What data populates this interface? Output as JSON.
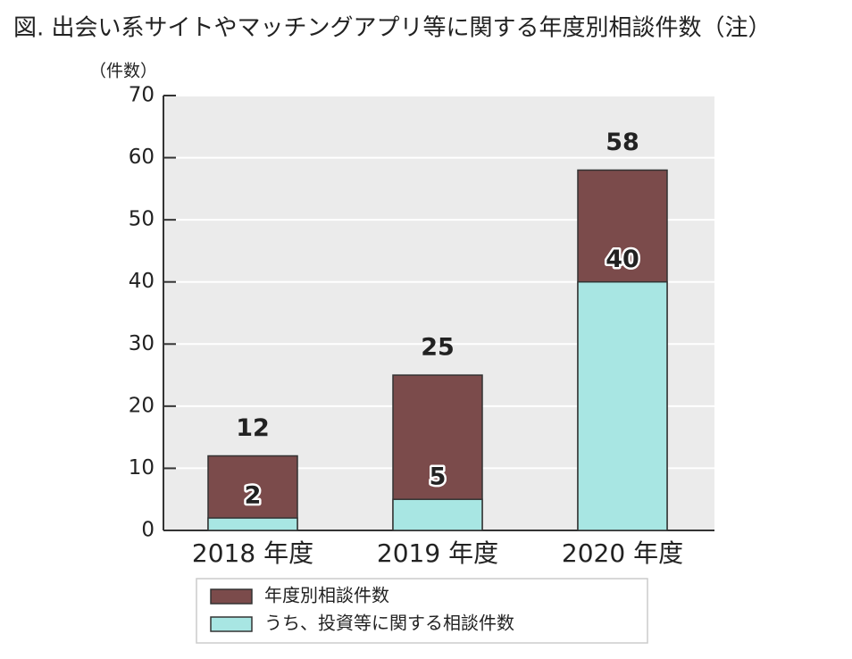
{
  "chart_data": {
    "type": "bar",
    "title": "図. 出会い系サイトやマッチングアプリ等に関する年度別相談件数（注）",
    "y_label": "（件数）",
    "categories": [
      "2018 年度",
      "2019 年度",
      "2020 年度"
    ],
    "series": [
      {
        "name": "年度別相談件数",
        "color": "#7b4b4b",
        "values": [
          12,
          25,
          58
        ]
      },
      {
        "name": "うち、投資等に関する相談件数",
        "color": "#a8e6e3",
        "values": [
          2,
          5,
          40
        ]
      }
    ],
    "ylim": [
      0,
      70
    ],
    "yticks": [
      0,
      10,
      20,
      30,
      40,
      50,
      60,
      70
    ],
    "grid": true
  }
}
